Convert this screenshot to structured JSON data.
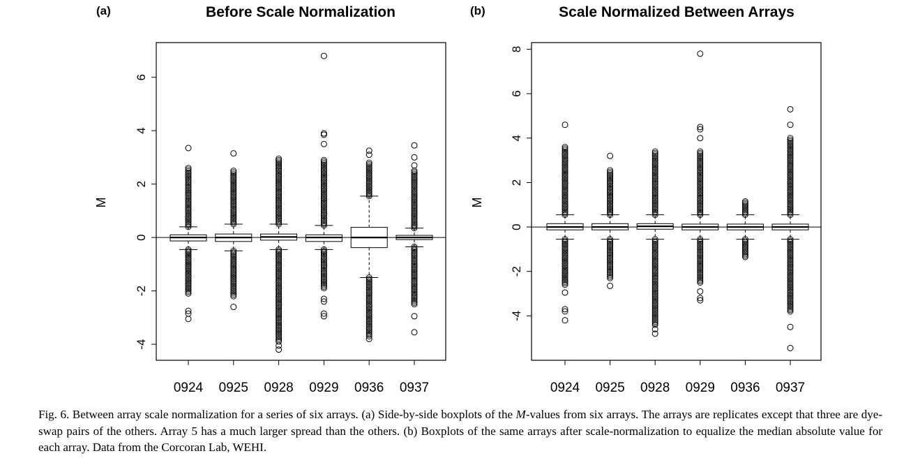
{
  "chart_data": [
    {
      "type": "boxplot",
      "panel_label": "(a)",
      "title": "Before Scale Normalization",
      "xlabel": "",
      "ylabel": "M",
      "ylim": [
        -4.6,
        7.3
      ],
      "yticks": [
        -4,
        -2,
        0,
        2,
        4,
        6
      ],
      "hline": 0,
      "categories": [
        "0924",
        "0925",
        "0928",
        "0929",
        "0936",
        "0937"
      ],
      "boxes": [
        {
          "name": "0924",
          "whisker_low": -0.45,
          "q1": -0.13,
          "median": 0.0,
          "q3": 0.1,
          "whisker_high": 0.4,
          "outlier_range_low": [
            -0.45,
            -2.1
          ],
          "outlier_range_high": [
            0.4,
            2.6
          ],
          "outliers": [
            3.35,
            -2.75,
            -2.85,
            -3.05
          ]
        },
        {
          "name": "0925",
          "whisker_low": -0.5,
          "q1": -0.15,
          "median": 0.0,
          "q3": 0.13,
          "whisker_high": 0.5,
          "outlier_range_low": [
            -0.5,
            -2.2
          ],
          "outlier_range_high": [
            0.5,
            2.5
          ],
          "outliers": [
            3.15,
            -2.6
          ]
        },
        {
          "name": "0928",
          "whisker_low": -0.45,
          "q1": -0.1,
          "median": 0.02,
          "q3": 0.13,
          "whisker_high": 0.5,
          "outlier_range_low": [
            -0.45,
            -3.9
          ],
          "outlier_range_high": [
            0.5,
            2.95
          ],
          "outliers": [
            -4.05,
            -4.2
          ]
        },
        {
          "name": "0929",
          "whisker_low": -0.45,
          "q1": -0.15,
          "median": 0.0,
          "q3": 0.1,
          "whisker_high": 0.45,
          "outlier_range_low": [
            -0.45,
            -1.9
          ],
          "outlier_range_high": [
            0.45,
            2.9
          ],
          "outliers": [
            3.5,
            3.85,
            3.9,
            6.8,
            -2.3,
            -2.4,
            -2.85,
            -2.95
          ]
        },
        {
          "name": "0936",
          "whisker_low": -1.5,
          "q1": -0.38,
          "median": 0.0,
          "q3": 0.38,
          "whisker_high": 1.55,
          "outlier_range_low": [
            -1.5,
            -3.7
          ],
          "outlier_range_high": [
            1.55,
            2.8
          ],
          "outliers": [
            3.1,
            3.25,
            -3.8
          ]
        },
        {
          "name": "0937",
          "whisker_low": -0.35,
          "q1": -0.08,
          "median": 0.0,
          "q3": 0.08,
          "whisker_high": 0.35,
          "outlier_range_low": [
            -0.35,
            -2.5
          ],
          "outlier_range_high": [
            0.35,
            2.5
          ],
          "outliers": [
            3.45,
            3.0,
            2.7,
            -2.95,
            -3.55
          ]
        }
      ]
    },
    {
      "type": "boxplot",
      "panel_label": "(b)",
      "title": "Scale Normalized Between Arrays",
      "xlabel": "",
      "ylabel": "M",
      "ylim": [
        -6,
        8.3
      ],
      "yticks": [
        -4,
        -2,
        0,
        2,
        4,
        6,
        8
      ],
      "hline": 0,
      "categories": [
        "0924",
        "0925",
        "0928",
        "0929",
        "0936",
        "0937"
      ],
      "boxes": [
        {
          "name": "0924",
          "whisker_low": -0.55,
          "q1": -0.13,
          "median": 0.0,
          "q3": 0.15,
          "whisker_high": 0.55,
          "outlier_range_low": [
            -0.55,
            -2.6
          ],
          "outlier_range_high": [
            0.55,
            3.6
          ],
          "outliers": [
            4.6,
            -2.95,
            -3.7,
            -3.8,
            -4.2
          ]
        },
        {
          "name": "0925",
          "whisker_low": -0.55,
          "q1": -0.13,
          "median": 0.0,
          "q3": 0.15,
          "whisker_high": 0.55,
          "outlier_range_low": [
            -0.55,
            -2.3
          ],
          "outlier_range_high": [
            0.55,
            2.55
          ],
          "outliers": [
            3.2,
            -2.65
          ]
        },
        {
          "name": "0928",
          "whisker_low": -0.55,
          "q1": -0.1,
          "median": 0.03,
          "q3": 0.15,
          "whisker_high": 0.55,
          "outlier_range_low": [
            -0.55,
            -4.4
          ],
          "outlier_range_high": [
            0.55,
            3.4
          ],
          "outliers": [
            -4.6,
            -4.8
          ]
        },
        {
          "name": "0929",
          "whisker_low": -0.55,
          "q1": -0.13,
          "median": 0.0,
          "q3": 0.13,
          "whisker_high": 0.55,
          "outlier_range_low": [
            -0.55,
            -2.5
          ],
          "outlier_range_high": [
            0.55,
            3.4
          ],
          "outliers": [
            4.0,
            4.4,
            4.5,
            7.8,
            -2.9,
            -3.2,
            -3.3
          ]
        },
        {
          "name": "0936",
          "whisker_low": -0.55,
          "q1": -0.13,
          "median": 0.0,
          "q3": 0.13,
          "whisker_high": 0.55,
          "outlier_range_low": [
            -0.55,
            -1.35
          ],
          "outlier_range_high": [
            0.55,
            1.15
          ],
          "outliers": []
        },
        {
          "name": "0937",
          "whisker_low": -0.55,
          "q1": -0.13,
          "median": 0.0,
          "q3": 0.13,
          "whisker_high": 0.55,
          "outlier_range_low": [
            -0.55,
            -3.8
          ],
          "outlier_range_high": [
            0.55,
            4.0
          ],
          "outliers": [
            4.6,
            5.3,
            -4.5,
            -5.45
          ]
        }
      ]
    }
  ],
  "caption": {
    "part1": "Fig. 6. Between array scale normalization for a series of six arrays. (a) Side-by-side boxplots of the ",
    "italic": "M",
    "part2": "-values from six arrays. The arrays are replicates except that three are dye-swap pairs of the others. Array 5 has a much larger spread than the others. (b) Boxplots of the same arrays after scale-normalization to equalize the median absolute value for each array. Data from the Corcoran Lab, WEHI."
  }
}
